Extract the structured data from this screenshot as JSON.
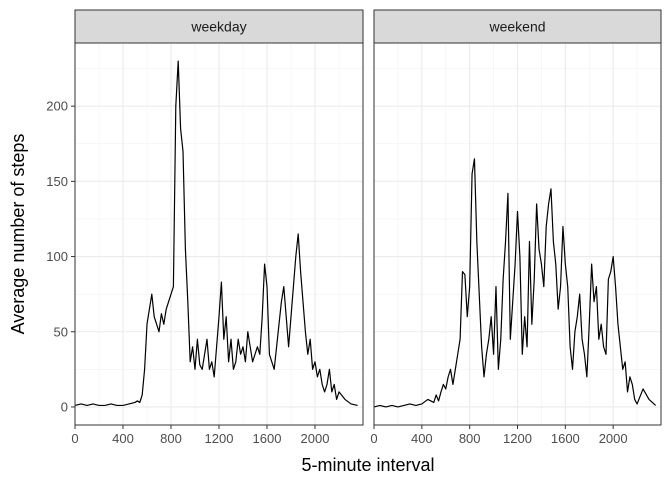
{
  "chart_data": {
    "type": "line",
    "xlabel": "5-minute interval",
    "ylabel": "Average number of steps",
    "xlim": [
      0,
      2400
    ],
    "ylim": [
      -12,
      242
    ],
    "x_ticks": [
      0,
      400,
      800,
      1200,
      1600,
      2000
    ],
    "y_ticks": [
      0,
      50,
      100,
      150,
      200
    ],
    "grid": true,
    "line_color": "#000000",
    "strip_fill": "#d9d9d9",
    "panels": [
      {
        "name": "weekday",
        "x": [
          0,
          50,
          100,
          150,
          200,
          250,
          300,
          350,
          400,
          450,
          500,
          520,
          540,
          560,
          580,
          600,
          620,
          640,
          660,
          680,
          700,
          720,
          740,
          760,
          780,
          800,
          820,
          840,
          860,
          880,
          900,
          920,
          940,
          960,
          980,
          1000,
          1020,
          1040,
          1060,
          1080,
          1100,
          1120,
          1140,
          1160,
          1180,
          1200,
          1220,
          1240,
          1260,
          1280,
          1300,
          1320,
          1340,
          1360,
          1380,
          1400,
          1420,
          1440,
          1460,
          1480,
          1500,
          1520,
          1540,
          1560,
          1580,
          1600,
          1620,
          1640,
          1660,
          1680,
          1700,
          1720,
          1740,
          1760,
          1780,
          1800,
          1820,
          1840,
          1860,
          1880,
          1900,
          1920,
          1940,
          1960,
          1980,
          2000,
          2020,
          2040,
          2060,
          2080,
          2100,
          2120,
          2140,
          2160,
          2180,
          2200,
          2250,
          2300,
          2355
        ],
        "y": [
          1,
          2,
          1,
          2,
          1,
          1,
          2,
          1,
          1,
          2,
          3,
          4,
          3,
          8,
          25,
          55,
          65,
          75,
          60,
          55,
          50,
          62,
          55,
          65,
          70,
          75,
          80,
          200,
          230,
          185,
          170,
          105,
          70,
          30,
          40,
          25,
          45,
          28,
          25,
          35,
          45,
          25,
          30,
          20,
          40,
          60,
          83,
          45,
          60,
          30,
          45,
          25,
          30,
          45,
          35,
          40,
          30,
          50,
          40,
          30,
          35,
          40,
          35,
          60,
          95,
          80,
          35,
          30,
          25,
          40,
          55,
          70,
          80,
          60,
          40,
          60,
          80,
          100,
          115,
          90,
          70,
          50,
          35,
          45,
          25,
          30,
          20,
          25,
          15,
          10,
          15,
          25,
          10,
          15,
          5,
          10,
          5,
          2,
          1
        ]
      },
      {
        "name": "weekend",
        "x": [
          0,
          50,
          100,
          150,
          200,
          250,
          300,
          350,
          400,
          450,
          500,
          520,
          540,
          560,
          580,
          600,
          620,
          640,
          660,
          680,
          700,
          720,
          740,
          760,
          780,
          800,
          820,
          840,
          860,
          880,
          900,
          920,
          940,
          960,
          980,
          1000,
          1020,
          1040,
          1060,
          1080,
          1100,
          1120,
          1140,
          1160,
          1180,
          1200,
          1220,
          1240,
          1260,
          1280,
          1300,
          1320,
          1340,
          1360,
          1380,
          1400,
          1420,
          1440,
          1460,
          1480,
          1500,
          1520,
          1540,
          1560,
          1580,
          1600,
          1620,
          1640,
          1660,
          1680,
          1700,
          1720,
          1740,
          1760,
          1780,
          1800,
          1820,
          1840,
          1860,
          1880,
          1900,
          1920,
          1940,
          1960,
          1980,
          2000,
          2020,
          2040,
          2060,
          2080,
          2100,
          2120,
          2140,
          2160,
          2180,
          2200,
          2250,
          2300,
          2355
        ],
        "y": [
          0,
          1,
          0,
          1,
          0,
          1,
          2,
          1,
          2,
          5,
          3,
          8,
          4,
          10,
          15,
          12,
          20,
          25,
          15,
          25,
          35,
          45,
          90,
          88,
          60,
          80,
          155,
          165,
          110,
          75,
          40,
          20,
          35,
          45,
          60,
          35,
          80,
          25,
          45,
          85,
          110,
          142,
          45,
          70,
          95,
          130,
          100,
          35,
          60,
          40,
          110,
          55,
          85,
          135,
          105,
          95,
          80,
          120,
          135,
          145,
          110,
          95,
          65,
          80,
          120,
          95,
          80,
          40,
          25,
          50,
          60,
          75,
          45,
          35,
          20,
          55,
          95,
          70,
          80,
          45,
          55,
          40,
          35,
          85,
          90,
          100,
          80,
          55,
          40,
          25,
          30,
          10,
          20,
          15,
          5,
          2,
          12,
          5,
          1
        ]
      }
    ]
  }
}
